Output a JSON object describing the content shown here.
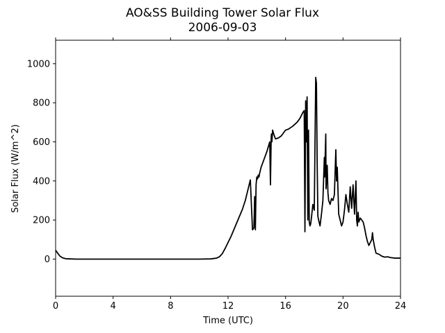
{
  "chart_data": {
    "type": "line",
    "title": "AO&SS Building Tower Solar Flux",
    "subtitle": "2006-09-03",
    "xlabel": "Time (UTC)",
    "ylabel": "Solar Flux (W/m^2)",
    "xlim": [
      0,
      24
    ],
    "ylim": [
      -190,
      1120
    ],
    "xticks": [
      0,
      4,
      8,
      12,
      16,
      20,
      24
    ],
    "yticks": [
      0,
      200,
      400,
      600,
      800,
      1000
    ],
    "grid": false,
    "line_color": "#000000",
    "series": [
      {
        "x": [
          0.0,
          0.15,
          0.3,
          0.5,
          0.7,
          1.0,
          1.5,
          2.0,
          4.0,
          6.0,
          8.0,
          10.0,
          10.8,
          11.2,
          11.4,
          11.6,
          11.8,
          12.0,
          12.2,
          12.4,
          12.6,
          12.8,
          13.0,
          13.2,
          13.4,
          13.55,
          13.7,
          13.8,
          13.85,
          13.9,
          13.95,
          14.0,
          14.05,
          14.1,
          14.15,
          14.2,
          14.3,
          14.5,
          14.7,
          14.9,
          14.95,
          15.0,
          15.02,
          15.05,
          15.1,
          15.2,
          15.3,
          15.5,
          15.7,
          15.9,
          16.0,
          16.2,
          16.5,
          16.8,
          17.0,
          17.2,
          17.3,
          17.35,
          17.4,
          17.45,
          17.5,
          17.55,
          17.6,
          17.65,
          17.7,
          17.75,
          17.8,
          17.9,
          18.0,
          18.1,
          18.15,
          18.2,
          18.25,
          18.3,
          18.4,
          18.5,
          18.6,
          18.7,
          18.72,
          18.8,
          18.82,
          18.9,
          18.95,
          19.0,
          19.1,
          19.2,
          19.3,
          19.4,
          19.5,
          19.55,
          19.6,
          19.7,
          19.8,
          19.9,
          20.0,
          20.1,
          20.2,
          20.3,
          20.4,
          20.5,
          20.6,
          20.7,
          20.8,
          20.9,
          20.95,
          21.0,
          21.05,
          21.1,
          21.15,
          21.2,
          21.3,
          21.4,
          21.5,
          21.6,
          21.7,
          21.8,
          21.9,
          22.0,
          22.05,
          22.1,
          22.2,
          22.3,
          22.5,
          22.7,
          22.9,
          23.1,
          23.3,
          23.6,
          24.0
        ],
        "y": [
          45,
          30,
          15,
          6,
          2,
          1,
          0,
          0,
          0,
          0,
          0,
          0,
          1,
          5,
          12,
          28,
          55,
          85,
          115,
          150,
          185,
          220,
          255,
          300,
          360,
          405,
          150,
          160,
          320,
          150,
          380,
          420,
          410,
          430,
          420,
          440,
          470,
          510,
          550,
          600,
          380,
          620,
          640,
          600,
          660,
          635,
          615,
          620,
          630,
          650,
          660,
          665,
          680,
          700,
          720,
          750,
          760,
          140,
          810,
          600,
          830,
          200,
          660,
          190,
          170,
          180,
          210,
          280,
          250,
          930,
          900,
          500,
          220,
          200,
          170,
          230,
          300,
          520,
          420,
          640,
          360,
          480,
          340,
          300,
          280,
          310,
          300,
          330,
          560,
          400,
          470,
          230,
          200,
          170,
          190,
          250,
          330,
          280,
          240,
          370,
          260,
          380,
          230,
          400,
          200,
          170,
          240,
          190,
          200,
          210,
          200,
          190,
          160,
          120,
          90,
          70,
          85,
          100,
          135,
          100,
          60,
          30,
          25,
          15,
          10,
          12,
          8,
          5,
          5
        ]
      }
    ]
  }
}
